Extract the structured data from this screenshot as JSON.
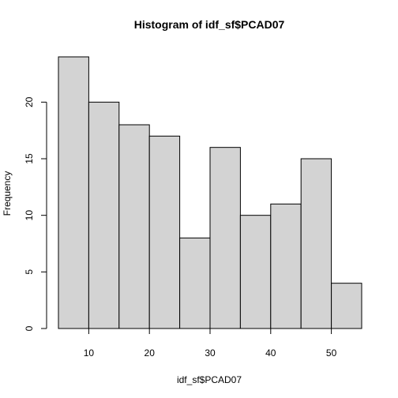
{
  "chart_data": {
    "type": "bar",
    "title": "Histogram of idf_sf$PCAD07",
    "xlabel": "idf_sf$PCAD07",
    "ylabel": "Frequency",
    "bins": [
      {
        "start": 5,
        "end": 10,
        "count": 24
      },
      {
        "start": 10,
        "end": 15,
        "count": 20
      },
      {
        "start": 15,
        "end": 20,
        "count": 18
      },
      {
        "start": 20,
        "end": 25,
        "count": 17
      },
      {
        "start": 25,
        "end": 30,
        "count": 8
      },
      {
        "start": 30,
        "end": 35,
        "count": 16
      },
      {
        "start": 35,
        "end": 40,
        "count": 10
      },
      {
        "start": 40,
        "end": 45,
        "count": 11
      },
      {
        "start": 45,
        "end": 50,
        "count": 15
      },
      {
        "start": 50,
        "end": 55,
        "count": 4
      }
    ],
    "xlim": [
      5,
      55
    ],
    "ylim": [
      0,
      24
    ],
    "x_ticks": [
      10,
      20,
      30,
      40,
      50
    ],
    "x_tick_labels": [
      "10",
      "20",
      "30",
      "40",
      "50"
    ],
    "y_ticks": [
      0,
      5,
      10,
      15,
      20
    ],
    "y_tick_labels": [
      "0",
      "5",
      "10",
      "15",
      "20"
    ],
    "grid": false,
    "colors": {
      "bar_fill": "#d3d3d3",
      "bar_stroke": "#000000",
      "axis": "#000000",
      "background": "#ffffff"
    }
  }
}
